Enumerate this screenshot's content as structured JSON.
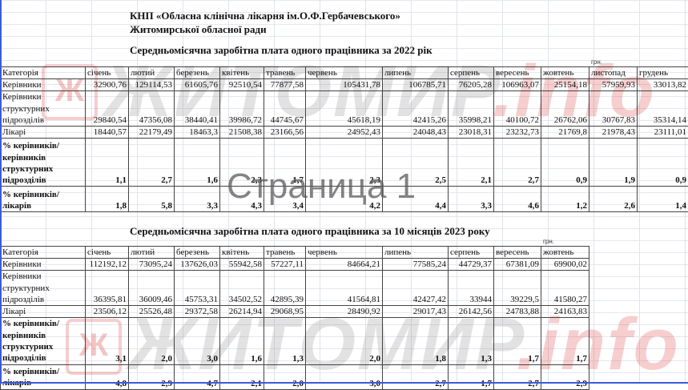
{
  "header": {
    "org_line1": "КНП «Обласна клінічна лікарня ім.О.Ф.Гербачевського»",
    "org_line2": "Житомирської обласної ради"
  },
  "watermark": {
    "brand": "ЖИТОМИР",
    "suffix": ".info",
    "logo": "Ж"
  },
  "page_label": "Страница 1",
  "table_2022": {
    "title": "Середньомісячна заробітна плата одного працівника за 2022 рік",
    "unit": "грн.",
    "columns": [
      "Категорія",
      "січень",
      "лютий",
      "березень",
      "квітень",
      "травень",
      "червень",
      "липень",
      "серпень",
      "вересень",
      "жовтень",
      "листопад",
      "грудень"
    ],
    "rows": [
      {
        "label": "Керівники",
        "values": [
          "32900,76",
          "129114,53",
          "61605,76",
          "92510,54",
          "77877,58",
          "105431,78",
          "106785,71",
          "76205,28",
          "106963,07",
          "25154,18",
          "57959,93",
          "33013,82"
        ]
      },
      {
        "label": "Керівники структурних підрозділів",
        "values": [
          "29840,54",
          "47356,08",
          "38440,41",
          "39986,72",
          "44745,67",
          "45618,19",
          "42415,26",
          "35998,21",
          "40100,72",
          "26762,06",
          "30767,83",
          "35314,14"
        ]
      },
      {
        "label": "Лікарі",
        "values": [
          "18440,57",
          "22179,49",
          "18463,3",
          "21508,38",
          "23166,56",
          "24952,43",
          "24048,43",
          "23018,31",
          "23232,73",
          "21769,8",
          "21978,43",
          "23111,01"
        ]
      },
      {
        "label": "% керівників/ керівників структурних підрозділів",
        "values": [
          "1,1",
          "2,7",
          "1,6",
          "2,3",
          "1,7",
          "2,3",
          "2,5",
          "2,1",
          "2,7",
          "0,9",
          "1,9",
          "0,9"
        ]
      },
      {
        "label": "% керівників/лікарів",
        "values": [
          "1,8",
          "5,8",
          "3,3",
          "4,3",
          "3,4",
          "4,2",
          "4,4",
          "3,3",
          "4,6",
          "1,2",
          "2,6",
          "1,4"
        ]
      }
    ]
  },
  "table_2023": {
    "title": "Середньомісячна заробітна плата одного працівника за 10 місяців 2023 року",
    "unit": "грн.",
    "columns": [
      "Категорія",
      "січень",
      "лютий",
      "березень",
      "квітень",
      "травень",
      "червень",
      "липень",
      "серпень",
      "вересень",
      "жовтень"
    ],
    "rows": [
      {
        "label": "Керівники",
        "values": [
          "112192,12",
          "73095,24",
          "137626,03",
          "55942,58",
          "57227,11",
          "84664,21",
          "77585,24",
          "44729,37",
          "67381,09",
          "69900,02"
        ]
      },
      {
        "label": "Керівники структурних підрозділів",
        "values": [
          "36395,81",
          "36009,46",
          "45753,31",
          "34502,52",
          "42895,39",
          "41564,81",
          "42427,42",
          "33944",
          "39229,5",
          "41580,27"
        ]
      },
      {
        "label": "Лікарі",
        "values": [
          "23506,12",
          "25526,48",
          "29372,58",
          "26214,94",
          "29068,95",
          "28490,92",
          "29017,43",
          "26142,56",
          "24783,88",
          "24163,83"
        ]
      },
      {
        "label": "% керівників/ керівників структурних підрозділів",
        "values": [
          "3,1",
          "2,0",
          "3,0",
          "1,6",
          "1,3",
          "2,0",
          "1,8",
          "1,3",
          "1,7",
          "1,7"
        ]
      },
      {
        "label": "% керівників/лікарів",
        "values": [
          "4,8",
          "2,9",
          "4,7",
          "2,1",
          "2,0",
          "3,0",
          "2,7",
          "1,7",
          "2,7",
          "2,9"
        ]
      }
    ]
  }
}
